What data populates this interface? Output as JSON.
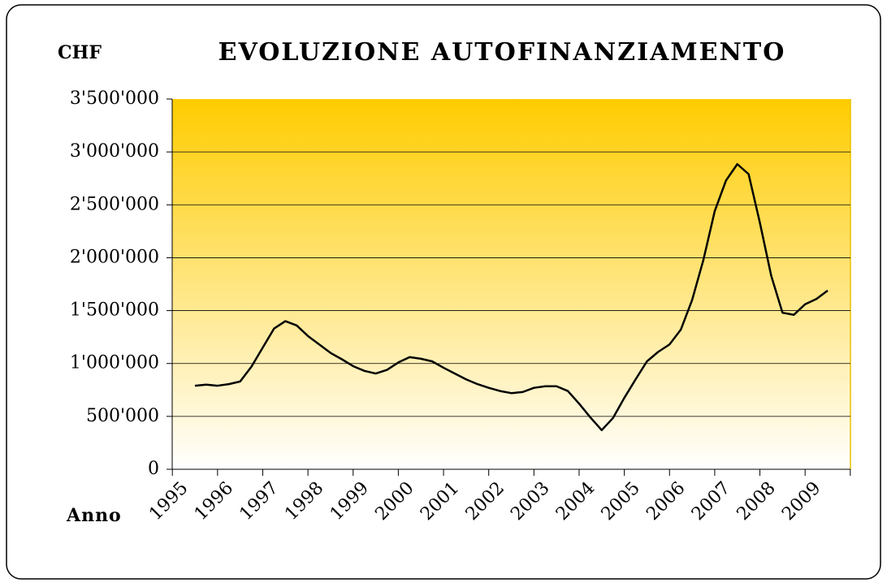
{
  "chart_data": {
    "type": "line",
    "title": "EVOLUZIONE  AUTOFINANZIAMENTO",
    "y_label": "CHF",
    "x_label": "Anno",
    "categories": [
      "1995",
      null,
      null,
      null,
      "1996",
      null,
      null,
      null,
      "1997",
      null,
      null,
      null,
      "1998",
      null,
      null,
      null,
      "1999",
      null,
      null,
      null,
      "2000",
      null,
      null,
      null,
      "2001",
      null,
      null,
      null,
      "2002",
      null,
      null,
      null,
      "2003",
      null,
      null,
      null,
      "2004",
      null,
      null,
      null,
      "2005",
      null,
      null,
      null,
      "2006",
      null,
      null,
      null,
      "2007",
      null,
      null,
      null,
      "2008",
      null,
      null,
      null,
      "2009"
    ],
    "series": [
      {
        "color": "#000000",
        "values": [
          790000,
          800000,
          790000,
          805000,
          830000,
          970000,
          1150000,
          1330000,
          1400000,
          1360000,
          1260000,
          1180000,
          1100000,
          1040000,
          975000,
          930000,
          905000,
          940000,
          1010000,
          1060000,
          1045000,
          1020000,
          960000,
          905000,
          850000,
          805000,
          770000,
          740000,
          720000,
          730000,
          770000,
          785000,
          785000,
          740000,
          620000,
          490000,
          370000,
          485000,
          675000,
          850000,
          1020000,
          1110000,
          1180000,
          1320000,
          1600000,
          1980000,
          2440000,
          2730000,
          2885000,
          2790000,
          2330000,
          1830000,
          1480000,
          1460000,
          1560000,
          1610000,
          1690000
        ]
      }
    ],
    "ylim": [
      0,
      3500000
    ],
    "yticks": [
      0,
      {
        "value": 500000,
        "label": "500'000"
      },
      {
        "value": 1000000,
        "label": "1'000'000"
      },
      {
        "value": 1500000,
        "label": "1'500'000"
      },
      {
        "value": 2000000,
        "label": "2'000'000"
      },
      {
        "value": 2500000,
        "label": "2'500'000"
      },
      {
        "value": 3000000,
        "label": "3'000'000"
      },
      {
        "value": 3500000,
        "label": "3'500'000"
      }
    ],
    "grid": true
  }
}
